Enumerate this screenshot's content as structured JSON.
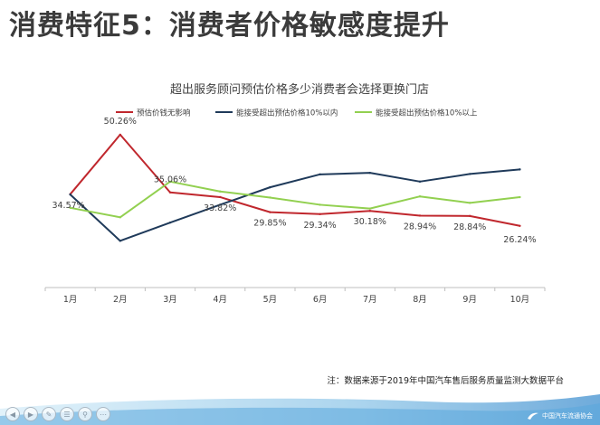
{
  "slide": {
    "title": "消费特征5：消费者价格敏感度提升",
    "footnote": "注：数据来源于2019年中国汽车售后服务质量监测大数据平台",
    "logo_text": "中国汽车流通协会"
  },
  "colors": {
    "series1": "#c0272d",
    "series2": "#1f3a5a",
    "series3": "#92d050",
    "axis": "#bfbfbf",
    "title": "#3b3b3b"
  },
  "chart_data": {
    "type": "line",
    "title": "超出服务顾问预估价格多少消费者会选择更换门店",
    "xlabel": "",
    "ylabel": "",
    "categories": [
      "1月",
      "2月",
      "3月",
      "4月",
      "5月",
      "6月",
      "7月",
      "8月",
      "9月",
      "10月"
    ],
    "ylim": [
      10,
      60
    ],
    "grid": false,
    "legend": "top",
    "series": [
      {
        "name": "预估价钱无影响",
        "values": [
          34.57,
          50.26,
          35.06,
          33.82,
          29.85,
          29.34,
          30.18,
          28.94,
          28.84,
          26.24
        ],
        "labels": [
          "34.57%",
          "50.26%",
          "35.06%",
          "33.82%",
          "29.85%",
          "29.34%",
          "30.18%",
          "28.94%",
          "28.84%",
          "26.24%"
        ]
      },
      {
        "name": "能接受超出预估价格10%以内",
        "values": [
          34.5,
          22.3,
          27.1,
          31.8,
          36.4,
          39.8,
          40.2,
          37.9,
          39.9,
          41.1
        ]
      },
      {
        "name": "能接受超出预估价格10%以上",
        "values": [
          31.0,
          28.5,
          37.9,
          35.3,
          33.7,
          31.8,
          30.8,
          34.0,
          32.3,
          33.8
        ]
      }
    ]
  }
}
